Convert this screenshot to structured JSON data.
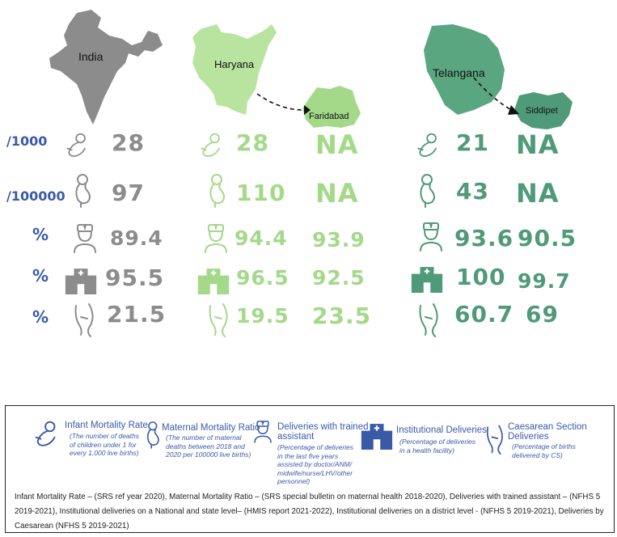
{
  "regions": {
    "india": {
      "label": "India",
      "color": "#8c8c8c"
    },
    "haryana": {
      "label": "Haryana",
      "color": "#a4d98a"
    },
    "faridabad": {
      "label": "Faridabad",
      "color": "#a4d98a"
    },
    "telangana": {
      "label": "Telangana",
      "color": "#4f9a79"
    },
    "siddipet": {
      "label": "Siddipet",
      "color": "#4f9a79"
    }
  },
  "units": {
    "imr": "/1000",
    "mmr": "/100000",
    "trained": "%",
    "institutional": "%",
    "caesarean": "%"
  },
  "values": {
    "india": {
      "imr": "28",
      "mmr": "97",
      "trained": "89.4",
      "institutional": "95.5",
      "caesarean": "21.5"
    },
    "haryana": {
      "imr": "28",
      "mmr": "110",
      "trained": "94.4",
      "institutional": "96.5",
      "caesarean": "19.5"
    },
    "faridabad": {
      "imr": "NA",
      "mmr": "NA",
      "trained": "93.9",
      "institutional": "92.5",
      "caesarean": "23.5"
    },
    "telangana": {
      "imr": "21",
      "mmr": "43",
      "trained": "93.6",
      "institutional": "100",
      "caesarean": "60.7"
    },
    "siddipet": {
      "imr": "NA",
      "mmr": "NA",
      "trained": "90.5",
      "institutional": "99.7",
      "caesarean": "69"
    }
  },
  "legend": {
    "imr": {
      "title": "Infant Mortality Rate",
      "desc": [
        "(The number of deaths",
        "of children under 1 for",
        "every 1,000 live births)"
      ],
      "icon": "baby-icon"
    },
    "mmr": {
      "title": "Maternal Mortality Ratio",
      "desc": [
        "(The number of maternal",
        "deaths between 2018 and",
        "2020 per 100000 live births)"
      ],
      "icon": "pregnant-woman-icon"
    },
    "trained": {
      "title": "Deliveries with trained",
      "title2": "assistant",
      "desc": [
        "(Percentage of deliveries",
        "in the last five years",
        "assisted by doctor/ANM/",
        "midwife/nurse/LHV/other",
        "personnel)"
      ],
      "icon": "nurse-icon"
    },
    "institutional": {
      "title": "Institutional Deliveries",
      "desc": [
        "(Percentage of deliveries",
        "in a health facility)"
      ],
      "icon": "hospital-icon"
    },
    "caesarean": {
      "title": "Caesarean Section",
      "title2": "Deliveries",
      "desc": [
        "(Percentage of births",
        "delivered by CS)"
      ],
      "icon": "caesarean-icon"
    }
  },
  "footnote": "Infant Mortality Rate – (SRS ref year 2020), Maternal Mortality Ratio – (SRS special bulletin on maternal health 2018-2020), Deliveries with trained assistant – (NFHS 5 2019-2021), Institutional deliveries on a National and state level– (HMIS report 2021-2022), Institutional deliveries on a district level - (NFHS 5 2019-2021), Deliveries by Caesarean (NFHS 5 2019-2021)"
}
